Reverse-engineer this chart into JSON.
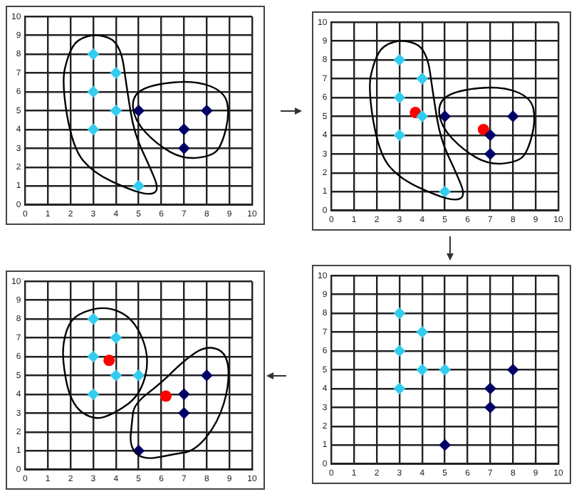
{
  "chart_data": [
    {
      "type": "scatter",
      "xlim": [
        0,
        10
      ],
      "ylim": [
        0,
        10
      ],
      "xticks": [
        0,
        1,
        2,
        3,
        4,
        5,
        6,
        7,
        8,
        9,
        10
      ],
      "yticks": [
        0,
        1,
        2,
        3,
        4,
        5,
        6,
        7,
        8,
        9,
        10
      ],
      "grid": true,
      "marker": "diamond",
      "series": [
        {
          "color": "#33ccee",
          "x": [
            3,
            4,
            3,
            4,
            3,
            5
          ],
          "values": [
            8,
            7,
            6,
            5,
            4,
            1
          ]
        },
        {
          "color": "#000066",
          "x": [
            5,
            7,
            7,
            8
          ],
          "values": [
            5,
            4,
            3,
            5
          ]
        }
      ]
    },
    {
      "type": "scatter",
      "xlim": [
        0,
        10
      ],
      "ylim": [
        0,
        10
      ],
      "xticks": [
        0,
        1,
        2,
        3,
        4,
        5,
        6,
        7,
        8,
        9,
        10
      ],
      "yticks": [
        0,
        1,
        2,
        3,
        4,
        5,
        6,
        7,
        8,
        9,
        10
      ],
      "grid": true,
      "marker": "diamond",
      "series": [
        {
          "color": "#33ccee",
          "x": [
            3,
            4,
            3,
            4,
            3,
            5
          ],
          "values": [
            8,
            7,
            6,
            5,
            4,
            1
          ]
        },
        {
          "color": "#000066",
          "x": [
            5,
            7,
            7,
            8
          ],
          "values": [
            5,
            4,
            3,
            5
          ]
        },
        {
          "color": "#ff0000",
          "marker": "circle",
          "x": [
            3.7,
            6.7
          ],
          "values": [
            5.2,
            4.3
          ]
        }
      ]
    },
    {
      "type": "scatter",
      "xlim": [
        0,
        10
      ],
      "ylim": [
        0,
        10
      ],
      "xticks": [
        0,
        1,
        2,
        3,
        4,
        5,
        6,
        7,
        8,
        9,
        10
      ],
      "yticks": [
        0,
        1,
        2,
        3,
        4,
        5,
        6,
        7,
        8,
        9,
        10
      ],
      "grid": true,
      "marker": "diamond",
      "series": [
        {
          "color": "#33ccee",
          "x": [
            3,
            4,
            3,
            4,
            5,
            3
          ],
          "values": [
            8,
            7,
            6,
            5,
            5,
            4
          ]
        },
        {
          "color": "#000066",
          "x": [
            5,
            7,
            7,
            8
          ],
          "values": [
            1,
            4,
            3,
            5
          ]
        },
        {
          "color": "#ff0000",
          "marker": "circle",
          "x": [
            3.7,
            6.2
          ],
          "values": [
            5.8,
            3.9
          ]
        }
      ]
    },
    {
      "type": "scatter",
      "xlim": [
        0,
        10
      ],
      "ylim": [
        0,
        10
      ],
      "xticks": [
        0,
        1,
        2,
        3,
        4,
        5,
        6,
        7,
        8,
        9,
        10
      ],
      "yticks": [
        0,
        1,
        2,
        3,
        4,
        5,
        6,
        7,
        8,
        9,
        10
      ],
      "grid": true,
      "marker": "diamond",
      "series": [
        {
          "color": "#33ccee",
          "x": [
            3,
            4,
            3,
            4,
            5,
            3
          ],
          "values": [
            8,
            7,
            6,
            5,
            5,
            4
          ]
        },
        {
          "color": "#000066",
          "x": [
            5,
            7,
            7,
            8
          ],
          "values": [
            1,
            4,
            3,
            5
          ]
        }
      ]
    }
  ]
}
